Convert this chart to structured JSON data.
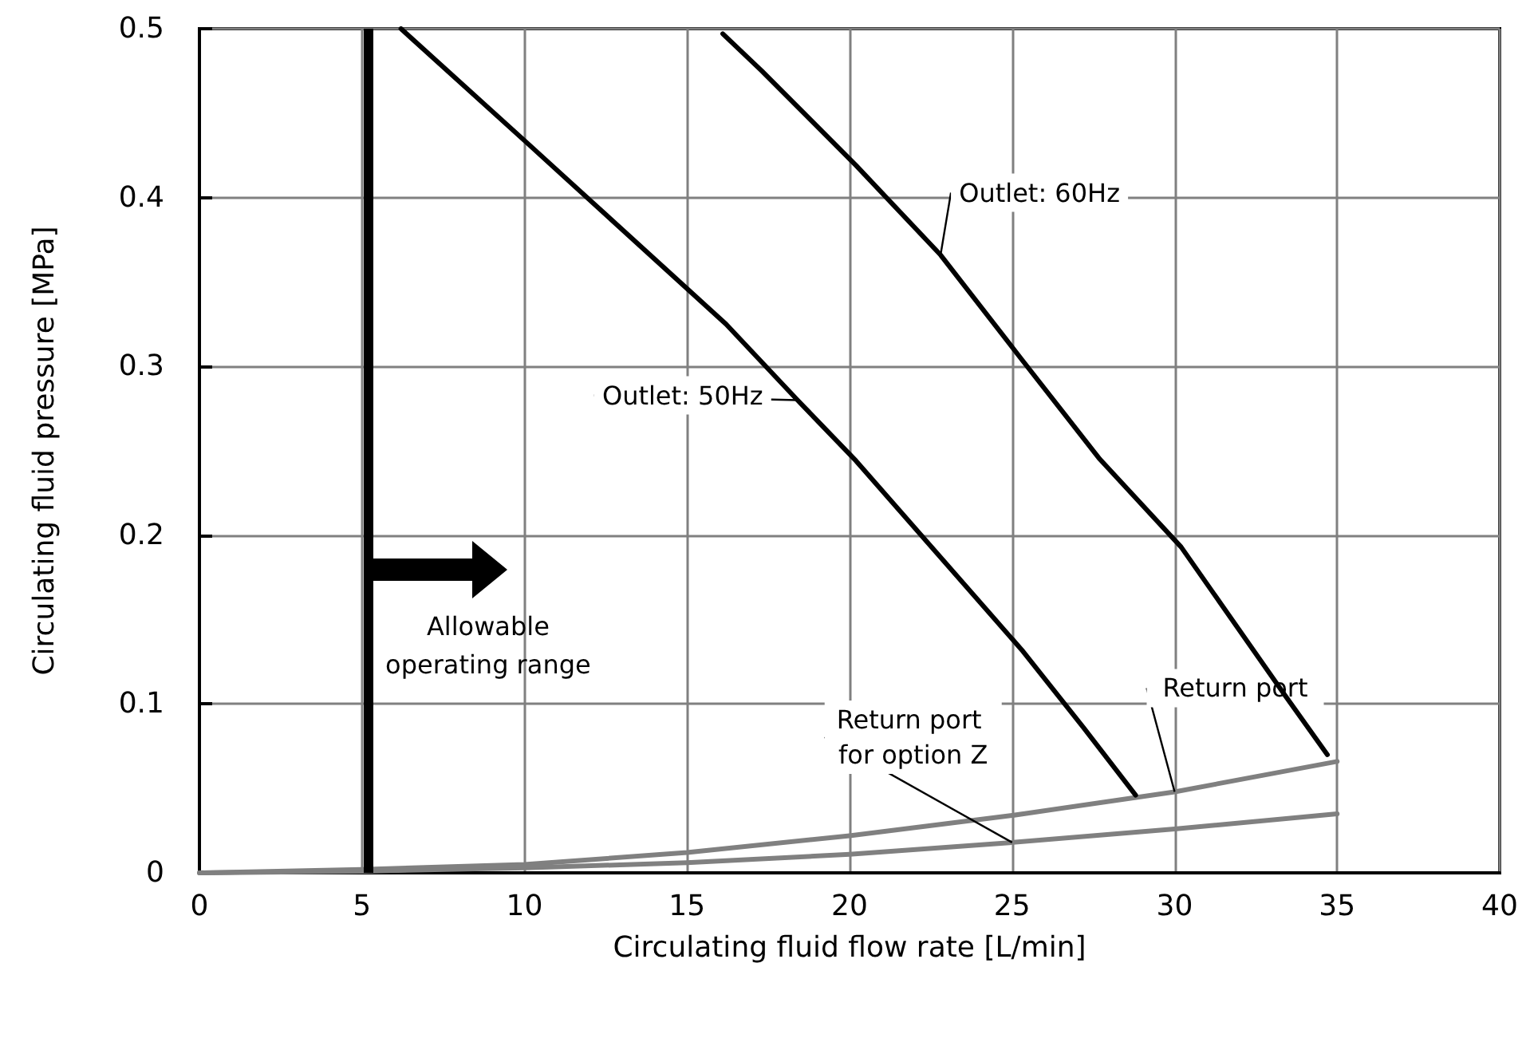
{
  "chart_data": {
    "type": "line",
    "xlabel": "Circulating fluid flow rate [L/min]",
    "ylabel": "Circulating fluid pressure [MPa]",
    "xlim": [
      0,
      40
    ],
    "xticks": [
      0,
      5,
      10,
      15,
      20,
      25,
      30,
      35,
      40
    ],
    "ylim": [
      0,
      0.5
    ],
    "yticks": [
      0,
      0.1,
      0.2,
      0.3,
      0.4,
      0.5
    ],
    "grid": true,
    "legend": false,
    "marker": "none",
    "line_style": "solid",
    "series": [
      {
        "name": "Outlet: 50Hz",
        "color": "#000000",
        "x": [
          6.2,
          10.1,
          16.2,
          18.4,
          20.2,
          25.3,
          27.2,
          28.8
        ],
        "values": [
          0.5,
          0.432,
          0.325,
          0.28,
          0.244,
          0.132,
          0.086,
          0.046
        ]
      },
      {
        "name": "Outlet: 60Hz",
        "color": "#000000",
        "x": [
          16.1,
          17.3,
          20.2,
          22.8,
          25.3,
          27.7,
          30.2,
          33.4,
          34.7
        ],
        "values": [
          0.497,
          0.475,
          0.419,
          0.366,
          0.304,
          0.245,
          0.193,
          0.105,
          0.07
        ]
      },
      {
        "name": "Return port",
        "color": "#808080",
        "x": [
          0,
          5,
          10,
          15,
          20,
          25,
          30,
          35
        ],
        "values": [
          0,
          0.002,
          0.005,
          0.012,
          0.022,
          0.034,
          0.048,
          0.066
        ]
      },
      {
        "name": "Return port for option Z",
        "color": "#808080",
        "x": [
          0,
          5,
          10,
          15,
          20,
          25,
          30,
          35
        ],
        "values": [
          0,
          0.001,
          0.003,
          0.006,
          0.011,
          0.018,
          0.026,
          0.035
        ]
      }
    ],
    "ref_lines": [
      {
        "axis": "x",
        "value": 5.2,
        "label": "Allowable operating range",
        "color": "#000000",
        "line_style": "solid"
      }
    ]
  }
}
